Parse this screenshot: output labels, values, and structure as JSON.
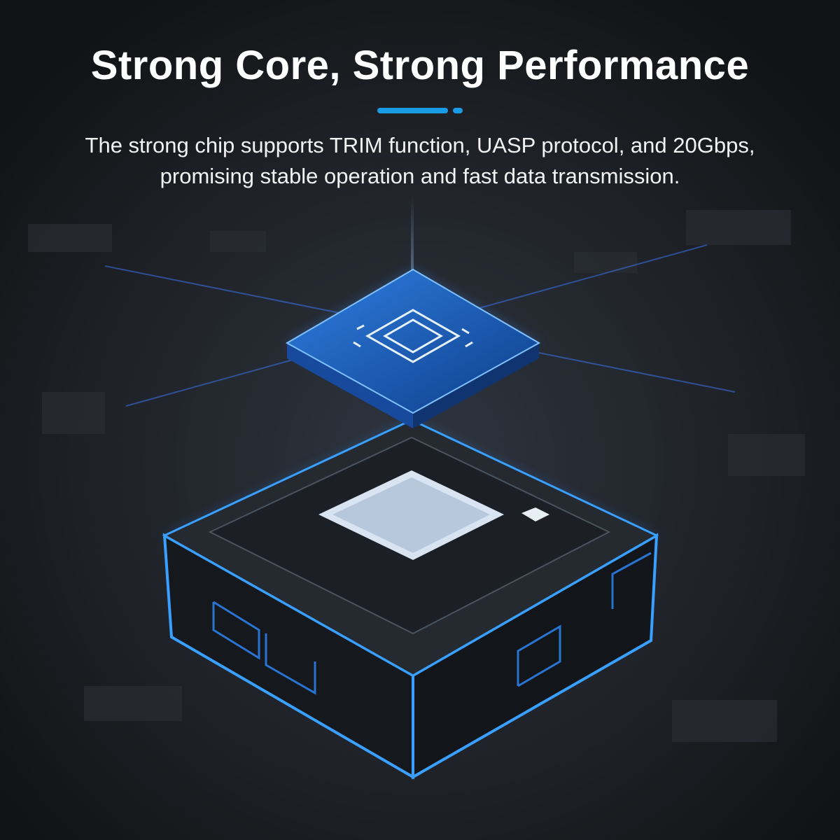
{
  "header": {
    "title": "Strong Core, Strong Performance",
    "description_lines": [
      "The strong chip supports TRIM function, UASP protocol, and 20Gbps,",
      "promising stable operation and fast data transmission."
    ]
  },
  "colors": {
    "accent": "#1a9be6",
    "background": "#1b1d21",
    "glow": "#2f8cff"
  },
  "illustration": {
    "icons": [
      "processor-chip-icon",
      "circuit-board-block"
    ]
  }
}
